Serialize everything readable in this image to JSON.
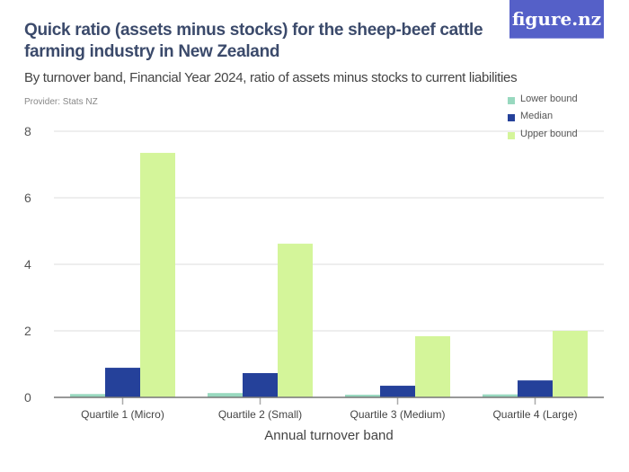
{
  "title": "Quick ratio (assets minus stocks) for the sheep-beef cattle farming industry in New Zealand",
  "subtitle": "By turnover band, Financial Year 2024, ratio of assets minus stocks to current liabilities",
  "provider": "Provider: Stats NZ",
  "logo": "figure.nz",
  "chart_data": {
    "type": "bar",
    "xlabel": "Annual turnover band",
    "ylabel": "",
    "categories": [
      "Quartile 1 (Micro)",
      "Quartile 2 (Small)",
      "Quartile 3 (Medium)",
      "Quartile 4 (Large)"
    ],
    "ylim": [
      0,
      8
    ],
    "yticks": [
      0,
      2,
      4,
      6,
      8
    ],
    "grid": true,
    "legend_position": "top-right",
    "series": [
      {
        "name": "Lower bound",
        "color": "#98d8bf",
        "values": [
          0.1,
          0.13,
          0.08,
          0.09
        ]
      },
      {
        "name": "Median",
        "color": "#25419a",
        "values": [
          0.89,
          0.73,
          0.35,
          0.51
        ]
      },
      {
        "name": "Upper bound",
        "color": "#d4f59a",
        "values": [
          7.35,
          4.62,
          1.84,
          2.0
        ]
      }
    ]
  }
}
